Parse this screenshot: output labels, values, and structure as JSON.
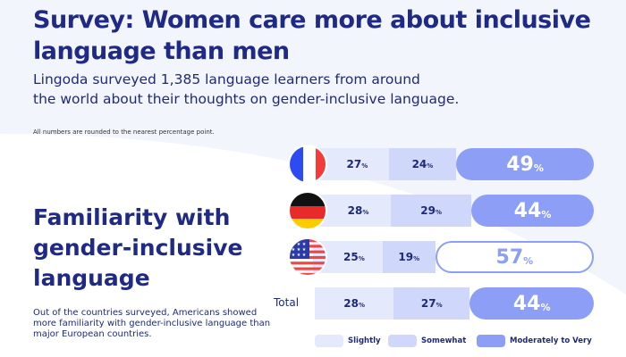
{
  "header": {
    "title": "Survey: Women care more about inclusive language than men",
    "subtitle_line1": "Lingoda surveyed 1,385 language learners from around",
    "subtitle_line2": "the world about their thoughts on gender-inclusive language.",
    "note": "All numbers are rounded to the nearest percentage point."
  },
  "section": {
    "title_line1": "Familiarity with",
    "title_line2": "gender-inclusive",
    "title_line3": "language",
    "description": "Out of the countries surveyed, Americans showed more familiarity with gender-inclusive language than major European countries."
  },
  "colors": {
    "slightly": "#e4e9fb",
    "somewhat": "#cfd8fa",
    "moderate": "#8d9ef7",
    "text": "#1e2a78"
  },
  "chart_data": {
    "type": "bar",
    "stacked": true,
    "orientation": "horizontal",
    "unit": "%",
    "categories": [
      "France",
      "Germany",
      "USA",
      "Total"
    ],
    "total_label": "Total",
    "series": [
      {
        "name": "Slightly",
        "values": [
          27,
          28,
          25,
          28
        ]
      },
      {
        "name": "Somewhat",
        "values": [
          24,
          29,
          19,
          27
        ]
      },
      {
        "name": "Moderately to Very",
        "values": [
          49,
          44,
          57,
          44
        ]
      }
    ],
    "highlight": "USA",
    "legend": "bottom"
  }
}
